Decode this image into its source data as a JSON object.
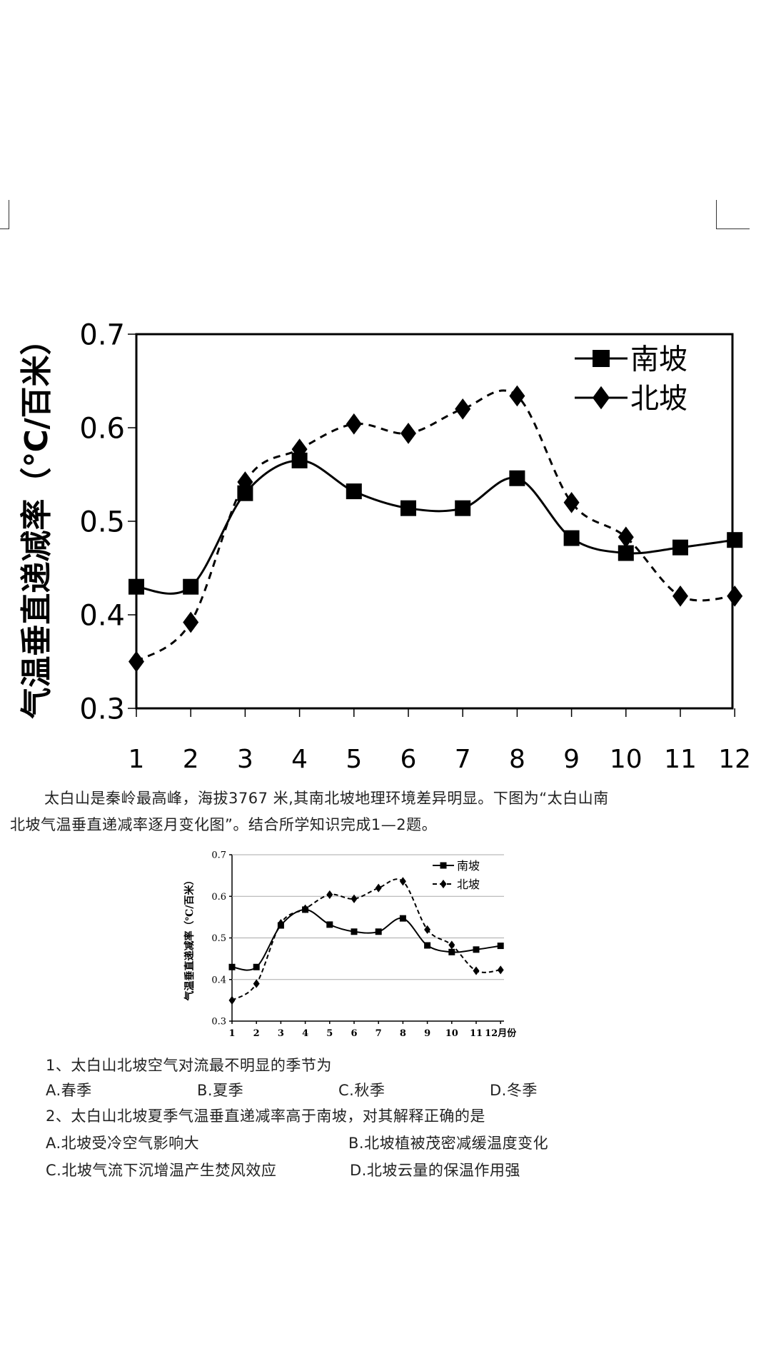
{
  "passage": {
    "line1": "太白山是秦岭最高峰，海拔3767  米,其南北坡地理环境差异明显。下图为“太白山南",
    "line2": "北坡气温垂直递减率逐月变化图”。结合所学知识完成1—2题。"
  },
  "questions": [
    {
      "stem": "1、太白山北坡空气对流最不明显的季节为",
      "options": [
        "A.春季",
        "B.夏季",
        "C.秋季",
        "D.冬季"
      ]
    },
    {
      "stem": "2、太白山北坡夏季气温垂直递减率高于南坡，对其解释正确的是",
      "options": [
        "A.北坡受冷空气影响大",
        "B.北坡植被茂密减缓温度变化",
        "C.北坡气流下沉增温产生焚风效应",
        "D.北坡云量的保温作用强"
      ]
    }
  ],
  "chart_data": [
    {
      "type": "line",
      "ylabel": "气温垂直递减率（℃/百米）",
      "xlabel": "",
      "x": [
        1,
        2,
        3,
        4,
        5,
        6,
        7,
        8,
        9,
        10,
        11,
        12
      ],
      "x_tick_labels": [
        "1",
        "2",
        "3",
        "4",
        "5",
        "6",
        "7",
        "8",
        "9",
        "10",
        "11",
        "12"
      ],
      "ylim": [
        0.3,
        0.7
      ],
      "y_ticks": [
        "0.3",
        "0.4",
        "0.5",
        "0.6",
        "0.7"
      ],
      "grid": false,
      "legend": "top-right",
      "series": [
        {
          "name": "南坡",
          "marker": "square",
          "line": "solid",
          "values": [
            0.43,
            0.43,
            0.53,
            0.565,
            0.532,
            0.514,
            0.514,
            0.546,
            0.482,
            0.466,
            0.472,
            0.48
          ]
        },
        {
          "name": "北坡",
          "marker": "diamond",
          "line": "dashed",
          "values": [
            0.35,
            0.392,
            0.542,
            0.577,
            0.604,
            0.594,
            0.62,
            0.634,
            0.52,
            0.483,
            0.42,
            0.42
          ]
        }
      ]
    },
    {
      "type": "line",
      "ylabel": "气温垂直递减率（℃/百米）",
      "xlabel": "月份",
      "x": [
        1,
        2,
        3,
        4,
        5,
        6,
        7,
        8,
        9,
        10,
        11,
        12
      ],
      "x_tick_labels": [
        "1",
        "2",
        "3",
        "4",
        "5",
        "6",
        "7",
        "8",
        "9",
        "10",
        "11",
        "12月份"
      ],
      "ylim": [
        0.3,
        0.7
      ],
      "y_ticks": [
        "0.3",
        "0.4",
        "0.5",
        "0.6",
        "0.7"
      ],
      "grid": true,
      "legend": "top-right",
      "series": [
        {
          "name": "南坡",
          "marker": "square",
          "line": "solid",
          "values": [
            0.43,
            0.43,
            0.53,
            0.568,
            0.532,
            0.515,
            0.515,
            0.547,
            0.482,
            0.466,
            0.472,
            0.481
          ]
        },
        {
          "name": "北坡",
          "marker": "diamond",
          "line": "dashed",
          "values": [
            0.35,
            0.39,
            0.535,
            0.57,
            0.604,
            0.594,
            0.62,
            0.636,
            0.52,
            0.483,
            0.421,
            0.423
          ]
        }
      ]
    }
  ]
}
